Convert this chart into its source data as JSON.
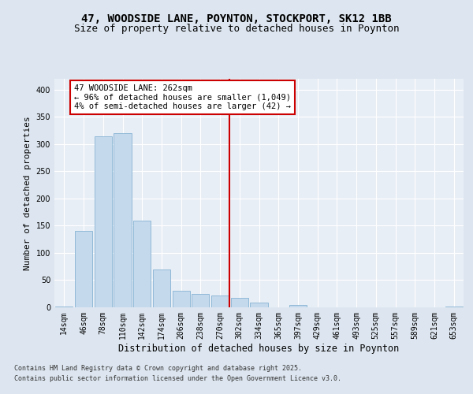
{
  "title": "47, WOODSIDE LANE, POYNTON, STOCKPORT, SK12 1BB",
  "subtitle": "Size of property relative to detached houses in Poynton",
  "xlabel": "Distribution of detached houses by size in Poynton",
  "ylabel": "Number of detached properties",
  "bar_labels": [
    "14sqm",
    "46sqm",
    "78sqm",
    "110sqm",
    "142sqm",
    "174sqm",
    "206sqm",
    "238sqm",
    "270sqm",
    "302sqm",
    "334sqm",
    "365sqm",
    "397sqm",
    "429sqm",
    "461sqm",
    "493sqm",
    "525sqm",
    "557sqm",
    "589sqm",
    "621sqm",
    "653sqm"
  ],
  "bar_values": [
    2,
    140,
    315,
    320,
    160,
    70,
    30,
    25,
    22,
    18,
    8,
    0,
    5,
    0,
    0,
    0,
    0,
    0,
    0,
    0,
    2
  ],
  "bar_color": "#c5d9ec",
  "bar_edge_color": "#85b3d4",
  "vline_x": 8.5,
  "vline_color": "#cc0000",
  "annotation_text": "47 WOODSIDE LANE: 262sqm\n← 96% of detached houses are smaller (1,049)\n4% of semi-detached houses are larger (42) →",
  "annotation_box_color": "#ffffff",
  "annotation_box_edge": "#cc0000",
  "ylim": [
    0,
    420
  ],
  "yticks": [
    0,
    50,
    100,
    150,
    200,
    250,
    300,
    350,
    400
  ],
  "bg_color": "#dde6f0",
  "plot_bg_color": "#e8eef5",
  "footer_line1": "Contains HM Land Registry data © Crown copyright and database right 2025.",
  "footer_line2": "Contains public sector information licensed under the Open Government Licence v3.0.",
  "title_fontsize": 10,
  "subtitle_fontsize": 9,
  "tick_fontsize": 7,
  "xlabel_fontsize": 8.5,
  "ylabel_fontsize": 8,
  "footer_fontsize": 6,
  "ann_fontsize": 7.5
}
